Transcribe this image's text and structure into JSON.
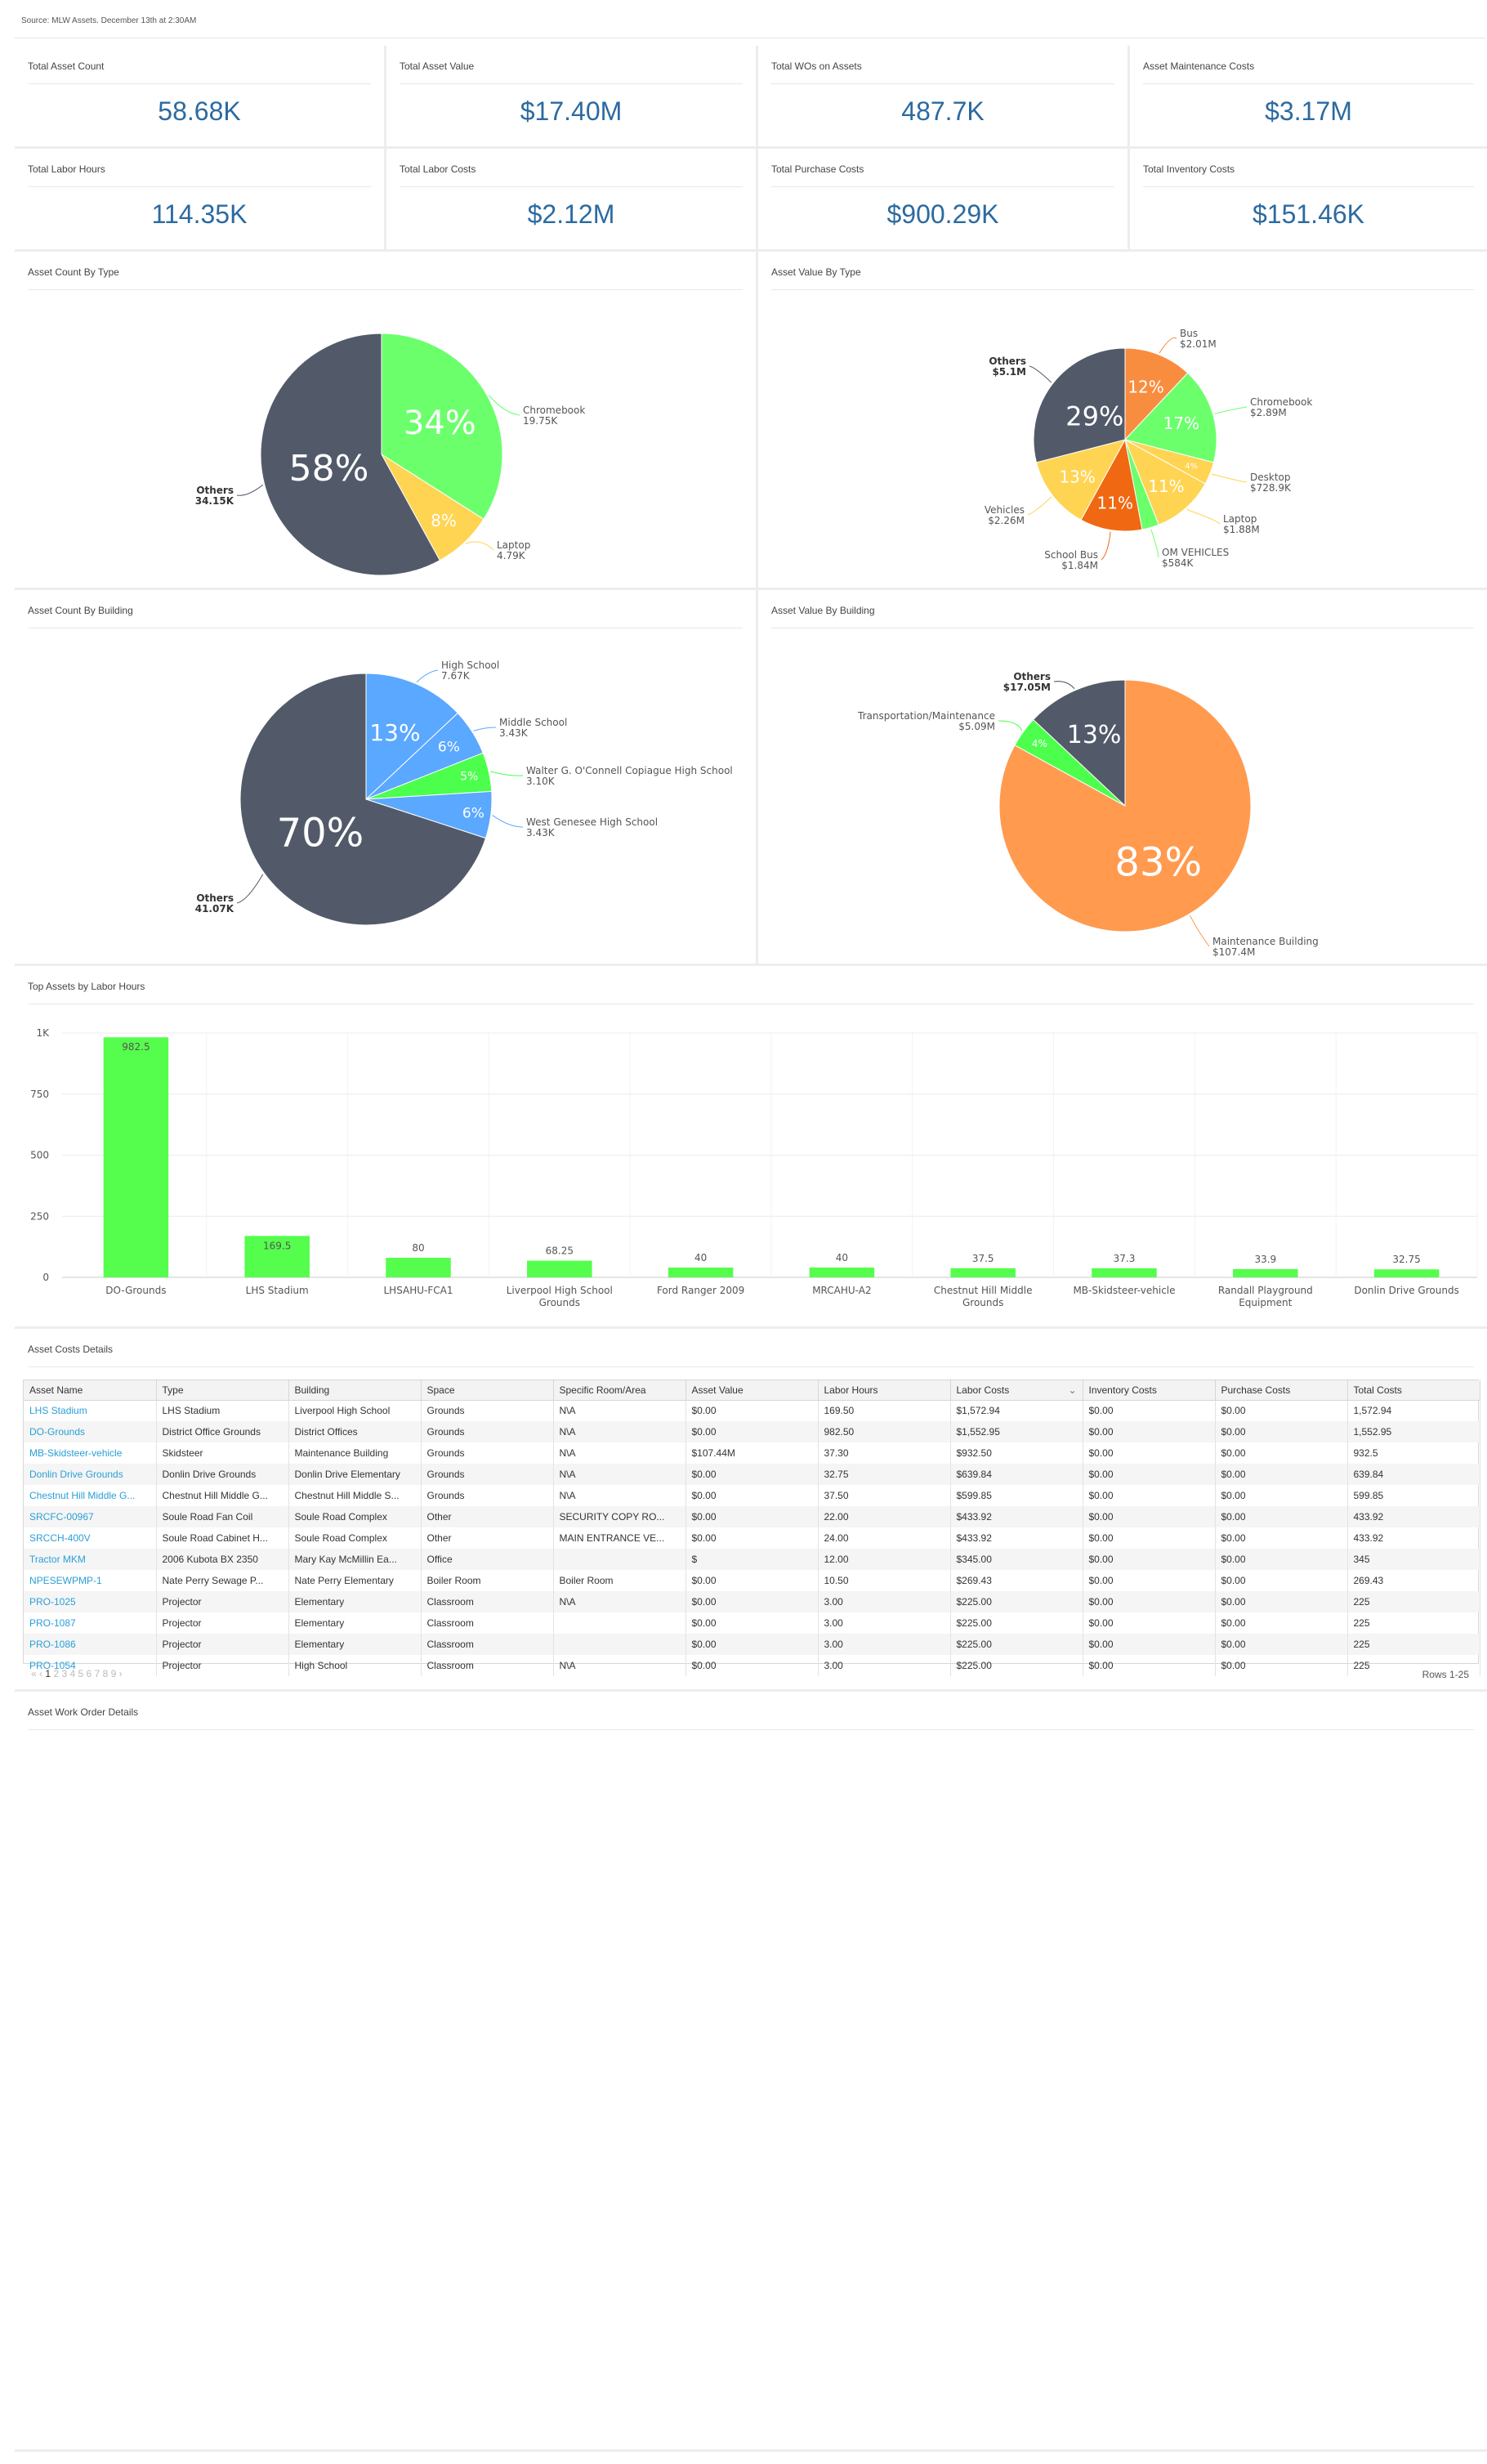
{
  "source": "Source: MLW Assets. December 13th at 2:30AM",
  "kpis": [
    {
      "label": "Total Asset Count",
      "value": "58.68K"
    },
    {
      "label": "Total Asset Value",
      "value": "$17.40M"
    },
    {
      "label": "Total WOs on Assets",
      "value": "487.7K"
    },
    {
      "label": "Asset Maintenance Costs",
      "value": "$3.17M"
    },
    {
      "label": "Total Labor Hours",
      "value": "114.35K"
    },
    {
      "label": "Total Labor Costs",
      "value": "$2.12M"
    },
    {
      "label": "Total Purchase Costs",
      "value": "$900.29K"
    },
    {
      "label": "Total Inventory Costs",
      "value": "$151.46K"
    }
  ],
  "colors": {
    "kpi": "#2c6aa0",
    "slate": "#525a6a",
    "green": "#6cff6c",
    "yellow": "#ffd452",
    "orange": "#f98d3f",
    "darkorange": "#f06812",
    "blue": "#5aa8ff",
    "brightgreen": "#4cff4c",
    "bigorange": "#ff9a4f"
  },
  "chart_data": [
    {
      "type": "pie",
      "title": "Asset Count By Type",
      "slices": [
        {
          "name": "Chromebook",
          "value": "19.75K",
          "pct": 34,
          "label": "34%"
        },
        {
          "name": "Laptop",
          "value": "4.79K",
          "pct": 8,
          "label": "8%"
        },
        {
          "name": "Others",
          "value": "34.15K",
          "pct": 58,
          "label": "58%"
        }
      ]
    },
    {
      "type": "pie",
      "title": "Asset Value By Type",
      "slices": [
        {
          "name": "Bus",
          "value": "$2.01M",
          "pct": 12,
          "label": "12%"
        },
        {
          "name": "Chromebook",
          "value": "$2.89M",
          "pct": 17,
          "label": "17%"
        },
        {
          "name": "Desktop",
          "value": "$728.9K",
          "pct": 4,
          "label": "4%"
        },
        {
          "name": "Laptop",
          "value": "$1.88M",
          "pct": 11,
          "label": "11%"
        },
        {
          "name": "OM VEHICLES",
          "value": "$584K",
          "pct": 3,
          "label": ""
        },
        {
          "name": "School Bus",
          "value": "$1.84M",
          "pct": 11,
          "label": "11%"
        },
        {
          "name": "Vehicles",
          "value": "$2.26M",
          "pct": 13,
          "label": "13%"
        },
        {
          "name": "Others",
          "value": "$5.1M",
          "pct": 29,
          "label": "29%"
        }
      ]
    },
    {
      "type": "pie",
      "title": "Asset Count By Building",
      "slices": [
        {
          "name": "High School",
          "value": "7.67K",
          "pct": 13,
          "label": "13%"
        },
        {
          "name": "Middle School",
          "value": "3.43K",
          "pct": 6,
          "label": "6%"
        },
        {
          "name": "Walter G. O'Connell Copiague High School",
          "value": "3.10K",
          "pct": 5,
          "label": "5%"
        },
        {
          "name": "West Genesee High School",
          "value": "3.43K",
          "pct": 6,
          "label": "6%"
        },
        {
          "name": "Others",
          "value": "41.07K",
          "pct": 70,
          "label": "70%"
        }
      ]
    },
    {
      "type": "pie",
      "title": "Asset Value By Building",
      "slices": [
        {
          "name": "Maintenance Building",
          "value": "$107.4M",
          "pct": 83,
          "label": "83%"
        },
        {
          "name": "Transportation/Maintenance",
          "value": "$5.09M",
          "pct": 4,
          "label": "4%"
        },
        {
          "name": "Others",
          "value": "$17.05M",
          "pct": 13,
          "label": "13%"
        }
      ]
    },
    {
      "type": "bar",
      "title": "Top Assets by Labor Hours",
      "categories": [
        "DO-Grounds",
        "LHS Stadium",
        "LHSAHU-FCA1",
        "Liverpool High School Grounds",
        "Ford Ranger 2009",
        "MRCAHU-A2",
        "Chestnut Hill Middle Grounds",
        "MB-Skidsteer-vehicle",
        "Randall Playground Equipment",
        "Donlin Drive Grounds"
      ],
      "values": [
        982.5,
        169.5,
        80,
        68.25,
        40,
        40,
        37.5,
        37.3,
        33.9,
        32.75
      ],
      "value_labels": [
        "982.5",
        "169.5",
        "80",
        "68.25",
        "40",
        "40",
        "37.5",
        "37.3",
        "33.9",
        "32.75"
      ],
      "ticks": [
        "0",
        "250",
        "500",
        "750",
        "1K"
      ],
      "ylim": [
        0,
        1000
      ]
    }
  ],
  "table": {
    "title": "Asset Costs Details",
    "columns": [
      "Asset Name",
      "Type",
      "Building",
      "Space",
      "Specific Room/Area",
      "Asset Value",
      "Labor Hours",
      "Labor Costs",
      "Inventory Costs",
      "Purchase Costs",
      "Total Costs"
    ],
    "rows": [
      [
        "LHS Stadium",
        "LHS Stadium",
        "Liverpool High School",
        "Grounds",
        "N\\A",
        "$0.00",
        "169.50",
        "$1,572.94",
        "$0.00",
        "$0.00",
        "1,572.94"
      ],
      [
        "DO-Grounds",
        "District Office Grounds",
        "District Offices",
        "Grounds",
        "N\\A",
        "$0.00",
        "982.50",
        "$1,552.95",
        "$0.00",
        "$0.00",
        "1,552.95"
      ],
      [
        "MB-Skidsteer-vehicle",
        "Skidsteer",
        "Maintenance Building",
        "Grounds",
        "N\\A",
        "$107.44M",
        "37.30",
        "$932.50",
        "$0.00",
        "$0.00",
        "932.5"
      ],
      [
        "Donlin Drive Grounds",
        "Donlin Drive Grounds",
        "Donlin Drive Elementary",
        "Grounds",
        "N\\A",
        "$0.00",
        "32.75",
        "$639.84",
        "$0.00",
        "$0.00",
        "639.84"
      ],
      [
        "Chestnut Hill Middle G...",
        "Chestnut Hill Middle G...",
        "Chestnut Hill Middle S...",
        "Grounds",
        "N\\A",
        "$0.00",
        "37.50",
        "$599.85",
        "$0.00",
        "$0.00",
        "599.85"
      ],
      [
        "SRCFC-00967",
        "Soule Road Fan Coil",
        "Soule Road Complex",
        "Other",
        "SECURITY COPY RO...",
        "$0.00",
        "22.00",
        "$433.92",
        "$0.00",
        "$0.00",
        "433.92"
      ],
      [
        "SRCCH-400V",
        "Soule Road Cabinet H...",
        "Soule Road Complex",
        "Other",
        "MAIN ENTRANCE VE...",
        "$0.00",
        "24.00",
        "$433.92",
        "$0.00",
        "$0.00",
        "433.92"
      ],
      [
        "Tractor MKM",
        "2006 Kubota BX 2350",
        "Mary Kay McMillin Ea...",
        "Office",
        "",
        "$",
        "12.00",
        "$345.00",
        "$0.00",
        "$0.00",
        "345"
      ],
      [
        "NPESEWPMP-1",
        "Nate Perry Sewage P...",
        "Nate Perry Elementary",
        "Boiler Room",
        "Boiler Room",
        "$0.00",
        "10.50",
        "$269.43",
        "$0.00",
        "$0.00",
        "269.43"
      ],
      [
        "PRO-1025",
        "Projector",
        "Elementary",
        "Classroom",
        "N\\A",
        "$0.00",
        "3.00",
        "$225.00",
        "$0.00",
        "$0.00",
        "225"
      ],
      [
        "PRO-1087",
        "Projector",
        "Elementary",
        "Classroom",
        "",
        "$0.00",
        "3.00",
        "$225.00",
        "$0.00",
        "$0.00",
        "225"
      ],
      [
        "PRO-1086",
        "Projector",
        "Elementary",
        "Classroom",
        "",
        "$0.00",
        "3.00",
        "$225.00",
        "$0.00",
        "$0.00",
        "225"
      ],
      [
        "PRO-1054",
        "Projector",
        "High School",
        "Classroom",
        "N\\A",
        "$0.00",
        "3.00",
        "$225.00",
        "$0.00",
        "$0.00",
        "225"
      ]
    ],
    "pager": {
      "first": "«",
      "prev": "‹",
      "pages": [
        "1",
        "2",
        "3",
        "4",
        "5",
        "6",
        "7",
        "8",
        "9"
      ],
      "next": "›"
    },
    "rows_info": "Rows 1-25"
  },
  "section_work_orders": "Asset Work Order Details"
}
